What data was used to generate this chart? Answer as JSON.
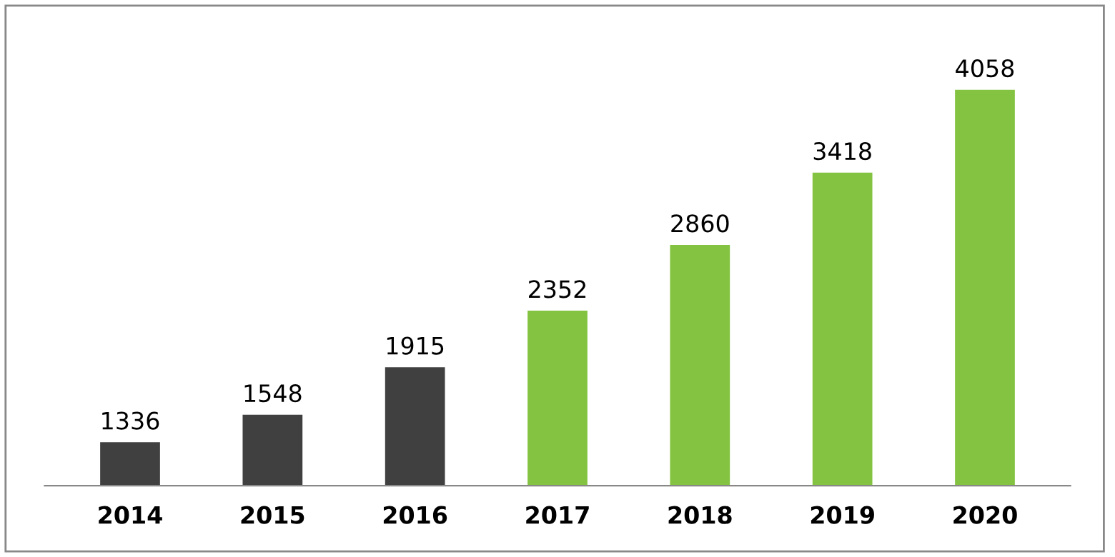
{
  "chart_data": {
    "type": "bar",
    "categories": [
      "2014",
      "2015",
      "2016",
      "2017",
      "2018",
      "2019",
      "2020"
    ],
    "values": [
      1336,
      1548,
      1915,
      2352,
      2860,
      3418,
      4058
    ],
    "colors": [
      "#404040",
      "#404040",
      "#404040",
      "#84c341",
      "#84c341",
      "#84c341",
      "#84c341"
    ],
    "ylim": [
      1000,
      4700
    ],
    "data_labels": true,
    "grid": false,
    "legend": false
  }
}
